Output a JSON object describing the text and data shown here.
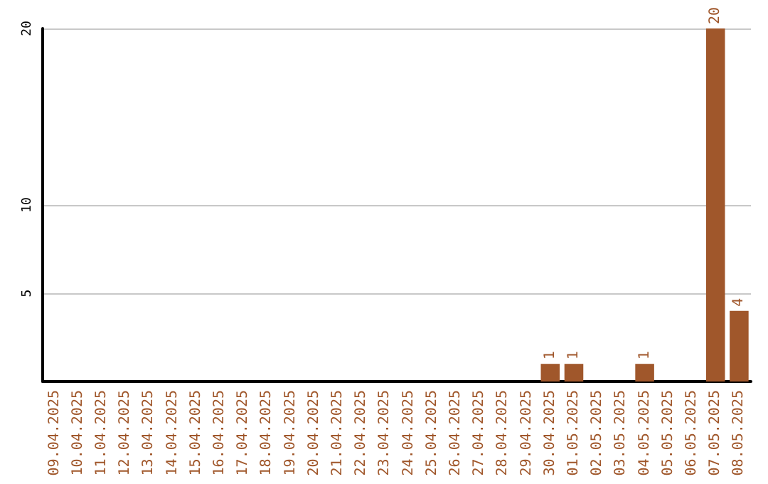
{
  "chart_data": {
    "type": "bar",
    "categories": [
      "09.04.2025",
      "10.04.2025",
      "11.04.2025",
      "12.04.2025",
      "13.04.2025",
      "14.04.2025",
      "15.04.2025",
      "16.04.2025",
      "17.04.2025",
      "18.04.2025",
      "19.04.2025",
      "20.04.2025",
      "21.04.2025",
      "22.04.2025",
      "23.04.2025",
      "24.04.2025",
      "25.04.2025",
      "26.04.2025",
      "27.04.2025",
      "28.04.2025",
      "29.04.2025",
      "30.04.2025",
      "01.05.2025",
      "02.05.2025",
      "03.05.2025",
      "04.05.2025",
      "05.05.2025",
      "06.05.2025",
      "07.05.2025",
      "08.05.2025"
    ],
    "values": [
      0,
      0,
      0,
      0,
      0,
      0,
      0,
      0,
      0,
      0,
      0,
      0,
      0,
      0,
      0,
      0,
      0,
      0,
      0,
      0,
      0,
      1,
      1,
      0,
      0,
      1,
      0,
      0,
      20,
      4
    ],
    "value_labels": [
      null,
      null,
      null,
      null,
      null,
      null,
      null,
      null,
      null,
      null,
      null,
      null,
      null,
      null,
      null,
      null,
      null,
      null,
      null,
      null,
      null,
      "1",
      "1",
      null,
      null,
      "1",
      null,
      null,
      "20",
      "4"
    ],
    "color": "#a0572b",
    "ylim": [
      0,
      20
    ],
    "yticks": [
      5,
      10,
      20
    ],
    "grid": "y"
  }
}
